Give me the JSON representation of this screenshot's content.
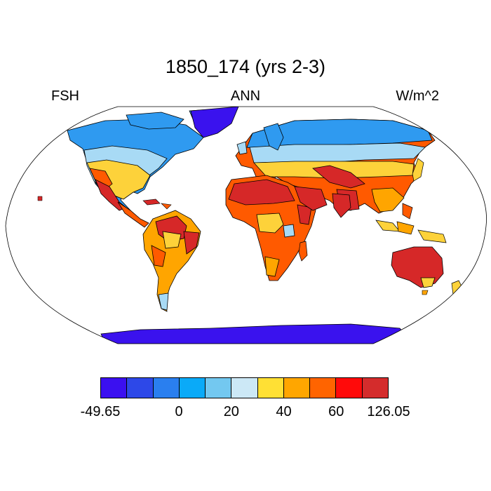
{
  "figure": {
    "title": "1850_174 (yrs 2-3)",
    "left_label": "FSH",
    "center_label": "ANN",
    "right_label": "W/m^2"
  },
  "map": {
    "projection": "robinson",
    "colors": {
      "ocean": "#ffffff",
      "border": "#000000",
      "polar_low": "#3a12ee",
      "boreal": "#2f9af0",
      "midlat": "#a8daf5",
      "temperate": "#fdd23a",
      "warm": "#ffa500",
      "hot": "#ff5a00",
      "desert": "#d62828"
    }
  },
  "colorbar": {
    "colors": [
      "#3b10f0",
      "#2d48e8",
      "#2a7fef",
      "#0aaaf8",
      "#73c8f0",
      "#cce8f6",
      "#ffe034",
      "#ffa600",
      "#ff6400",
      "#ff0a0a",
      "#d42c2c"
    ],
    "labels": [
      "-49.65",
      "0",
      "20",
      "40",
      "60",
      "126.05"
    ],
    "label_boundary_index": [
      0,
      3,
      5,
      7,
      9,
      11
    ]
  }
}
